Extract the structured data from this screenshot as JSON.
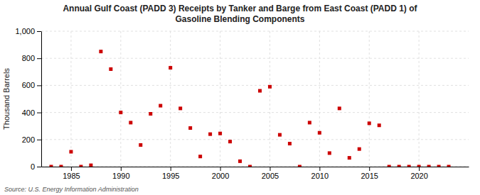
{
  "chart_data": {
    "type": "scatter",
    "title": "Annual Gulf Coast (PADD 3) Receipts by Tanker and Barge from East Coast (PADD 1) of\nGasoline Blending Components",
    "ylabel": "Thousand Barrels",
    "annotations": [
      "Source: U.S. Energy Information Administration"
    ],
    "x": [
      1983,
      1984,
      1985,
      1986,
      1987,
      1988,
      1989,
      1990,
      1991,
      1992,
      1993,
      1994,
      1995,
      1996,
      1997,
      1998,
      1999,
      2000,
      2001,
      2002,
      2003,
      2004,
      2005,
      2006,
      2007,
      2008,
      2009,
      2010,
      2011,
      2012,
      2013,
      2014,
      2015,
      2016,
      2017,
      2018,
      2019,
      2020,
      2021,
      2022,
      2023
    ],
    "values": [
      0,
      0,
      110,
      0,
      10,
      850,
      720,
      400,
      325,
      160,
      390,
      450,
      730,
      430,
      285,
      75,
      240,
      245,
      185,
      40,
      0,
      560,
      590,
      235,
      170,
      0,
      325,
      250,
      100,
      430,
      65,
      130,
      320,
      305,
      0,
      0,
      0,
      0,
      0,
      0,
      0
    ],
    "color": "#cc0000",
    "marker": "square",
    "xlim": [
      1982,
      2025
    ],
    "ylim": [
      0,
      1000
    ],
    "xticks": [
      1985,
      1990,
      1995,
      2000,
      2005,
      2010,
      2015,
      2020
    ],
    "yticks": [
      0,
      200,
      400,
      600,
      800,
      {
        "value": 1000,
        "label": "1,000"
      }
    ],
    "grid": true
  }
}
